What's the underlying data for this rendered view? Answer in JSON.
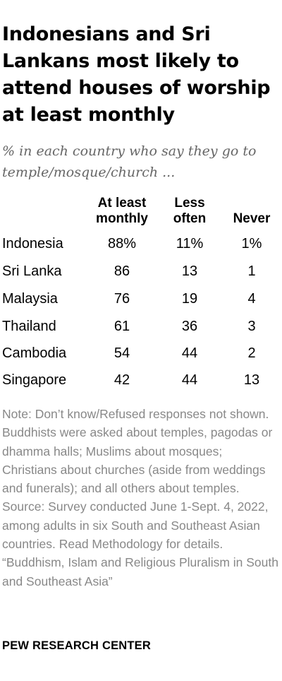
{
  "chart_data": {
    "type": "table",
    "title": "Indonesians and Sri Lankans most likely to attend houses of worship at least monthly",
    "subtitle": "% in each country who say they go to temple/mosque/church ...",
    "columns": [
      "At least monthly",
      "Less often",
      "Never"
    ],
    "column_labels": [
      [
        "At least",
        "monthly"
      ],
      [
        "Less",
        "often"
      ],
      [
        "Never"
      ]
    ],
    "rows": [
      {
        "country": "Indonesia",
        "cells": [
          "88%",
          "11%",
          "1%"
        ]
      },
      {
        "country": "Sri Lanka",
        "cells": [
          "86",
          "13",
          "1"
        ]
      },
      {
        "country": "Malaysia",
        "cells": [
          "76",
          "19",
          "4"
        ]
      },
      {
        "country": "Thailand",
        "cells": [
          "61",
          "36",
          "3"
        ]
      },
      {
        "country": "Cambodia",
        "cells": [
          "54",
          "44",
          "2"
        ]
      },
      {
        "country": "Singapore",
        "cells": [
          "42",
          "44",
          "13"
        ]
      }
    ],
    "values": [
      [
        88,
        11,
        1
      ],
      [
        86,
        13,
        1
      ],
      [
        76,
        19,
        4
      ],
      [
        61,
        36,
        3
      ],
      [
        54,
        44,
        2
      ],
      [
        42,
        44,
        13
      ]
    ]
  },
  "note": "Note: Don’t know/Refused responses not shown. Buddhists were asked about temples, pagodas or dhamma halls; Muslims about mosques; Christians about churches (aside from weddings and funerals); and all others about temples.",
  "source": "Source: Survey conducted June 1-Sept. 4, 2022, among adults in six South and Southeast Asian countries. Read Methodology for details.",
  "report": "“Buddhism, Islam and Religious Pluralism in South and Southeast Asia”",
  "footer": "PEW RESEARCH CENTER",
  "colors": {
    "text": "#000000",
    "subtitle": "#666666",
    "note": "#888888",
    "background": "#ffffff"
  }
}
